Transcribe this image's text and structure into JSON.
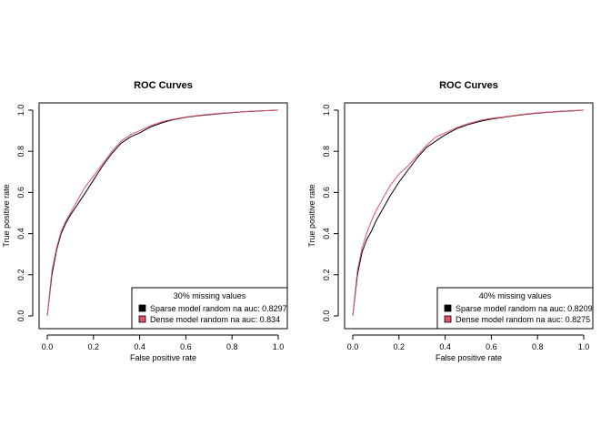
{
  "chart_data": [
    {
      "type": "line",
      "title": "ROC Curves",
      "xlabel": "False positive rate",
      "ylabel": "True positive rate",
      "xlim": [
        0,
        1
      ],
      "ylim": [
        0,
        1
      ],
      "xticks": [
        "0.0",
        "0.2",
        "0.4",
        "0.6",
        "0.8",
        "1.0"
      ],
      "yticks": [
        "0.0",
        "0.2",
        "0.4",
        "0.6",
        "0.8",
        "1.0"
      ],
      "grid": false,
      "legend": {
        "title": "30% missing values",
        "position": "bottom-right"
      },
      "series": [
        {
          "name": "Sparse model random na auc: 0.8297",
          "color": "#000000",
          "x": [
            0,
            0.01,
            0.02,
            0.04,
            0.06,
            0.08,
            0.1,
            0.13,
            0.16,
            0.2,
            0.24,
            0.28,
            0.32,
            0.36,
            0.4,
            0.45,
            0.5,
            0.55,
            0.6,
            0.65,
            0.7,
            0.75,
            0.8,
            0.85,
            0.9,
            0.95,
            1.0
          ],
          "y": [
            0,
            0.1,
            0.2,
            0.32,
            0.4,
            0.45,
            0.49,
            0.54,
            0.59,
            0.66,
            0.73,
            0.79,
            0.84,
            0.87,
            0.89,
            0.92,
            0.94,
            0.955,
            0.965,
            0.972,
            0.978,
            0.983,
            0.988,
            0.992,
            0.995,
            0.998,
            1.0
          ]
        },
        {
          "name": "Dense model random na auc: 0.834",
          "color": "#df536b",
          "x": [
            0,
            0.01,
            0.02,
            0.04,
            0.06,
            0.08,
            0.1,
            0.13,
            0.16,
            0.2,
            0.24,
            0.28,
            0.32,
            0.36,
            0.4,
            0.45,
            0.5,
            0.55,
            0.6,
            0.65,
            0.7,
            0.75,
            0.8,
            0.85,
            0.9,
            0.95,
            1.0
          ],
          "y": [
            0,
            0.11,
            0.22,
            0.33,
            0.41,
            0.46,
            0.5,
            0.56,
            0.62,
            0.68,
            0.74,
            0.8,
            0.85,
            0.88,
            0.9,
            0.925,
            0.945,
            0.957,
            0.967,
            0.974,
            0.98,
            0.985,
            0.989,
            0.993,
            0.996,
            0.998,
            1.0
          ]
        }
      ]
    },
    {
      "type": "line",
      "title": "ROC Curves",
      "xlabel": "False positive rate",
      "ylabel": "True positive rate",
      "xlim": [
        0,
        1
      ],
      "ylim": [
        0,
        1
      ],
      "xticks": [
        "0.0",
        "0.2",
        "0.4",
        "0.6",
        "0.8",
        "1.0"
      ],
      "yticks": [
        "0.0",
        "0.2",
        "0.4",
        "0.6",
        "0.8",
        "1.0"
      ],
      "grid": false,
      "legend": {
        "title": "40% missing values",
        "position": "bottom-right"
      },
      "series": [
        {
          "name": "Sparse model random na auc: 0.8209",
          "color": "#000000",
          "x": [
            0,
            0.01,
            0.02,
            0.04,
            0.06,
            0.08,
            0.1,
            0.13,
            0.16,
            0.2,
            0.24,
            0.28,
            0.32,
            0.36,
            0.4,
            0.45,
            0.5,
            0.55,
            0.6,
            0.65,
            0.7,
            0.75,
            0.8,
            0.85,
            0.9,
            0.95,
            1.0
          ],
          "y": [
            0,
            0.1,
            0.2,
            0.31,
            0.37,
            0.41,
            0.46,
            0.52,
            0.58,
            0.65,
            0.71,
            0.77,
            0.82,
            0.85,
            0.88,
            0.91,
            0.93,
            0.945,
            0.957,
            0.965,
            0.973,
            0.98,
            0.986,
            0.99,
            0.994,
            0.997,
            1.0
          ]
        },
        {
          "name": "Dense model random na auc: 0.8275",
          "color": "#df536b",
          "x": [
            0,
            0.01,
            0.02,
            0.04,
            0.06,
            0.08,
            0.1,
            0.13,
            0.16,
            0.2,
            0.24,
            0.28,
            0.32,
            0.36,
            0.4,
            0.45,
            0.5,
            0.55,
            0.6,
            0.65,
            0.7,
            0.75,
            0.8,
            0.85,
            0.9,
            0.95,
            1.0
          ],
          "y": [
            0,
            0.11,
            0.22,
            0.33,
            0.4,
            0.46,
            0.51,
            0.57,
            0.63,
            0.69,
            0.73,
            0.78,
            0.83,
            0.87,
            0.89,
            0.915,
            0.935,
            0.95,
            0.96,
            0.967,
            0.975,
            0.982,
            0.987,
            0.991,
            0.995,
            0.998,
            1.0
          ]
        }
      ]
    }
  ]
}
